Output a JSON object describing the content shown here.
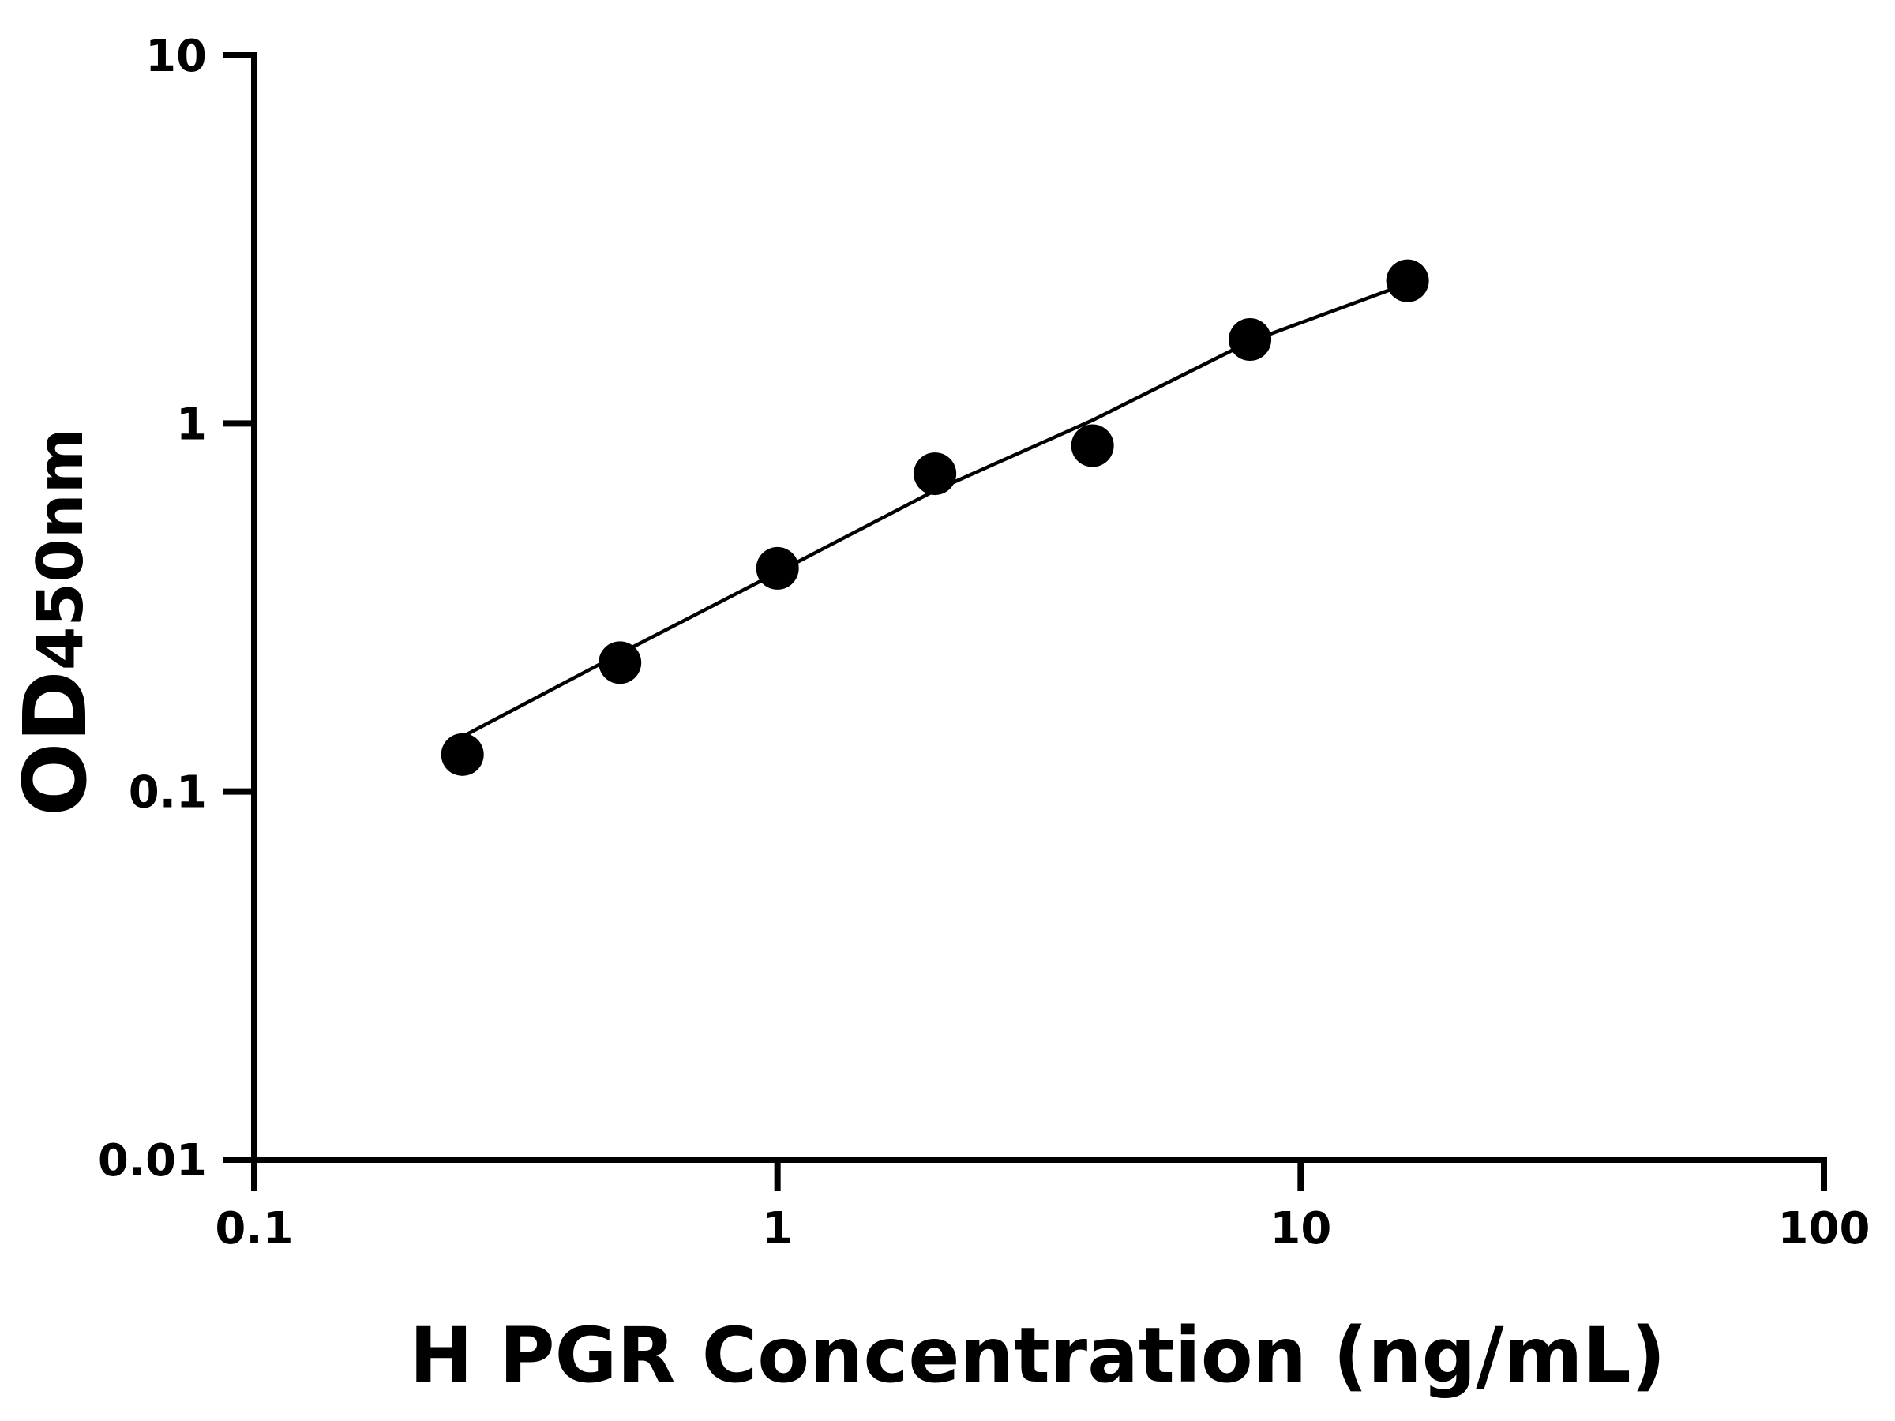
{
  "chart_data": {
    "type": "scatter",
    "x_label": "H PGR Concentration (ng/mL)",
    "y_label": "OD",
    "y_label_subscript": "450nm",
    "x": [
      0.25,
      0.5,
      1,
      2,
      4,
      8,
      16
    ],
    "series": [
      {
        "type": "scatter",
        "color": "#000000",
        "values": [
          0.126,
          0.224,
          0.404,
          0.73,
          0.87,
          1.69,
          2.44
        ]
      },
      {
        "type": "line",
        "color": "#000000",
        "values": [
          0.141,
          0.237,
          0.394,
          0.657,
          1.02,
          1.67,
          2.4
        ]
      }
    ],
    "xscale": "log",
    "yscale": "log",
    "xlim": [
      0.1,
      100
    ],
    "ylim": [
      0.01,
      10
    ],
    "xticks": [
      0.1,
      1,
      10,
      100
    ],
    "yticks": [
      0.01,
      0.1,
      1,
      10
    ]
  }
}
